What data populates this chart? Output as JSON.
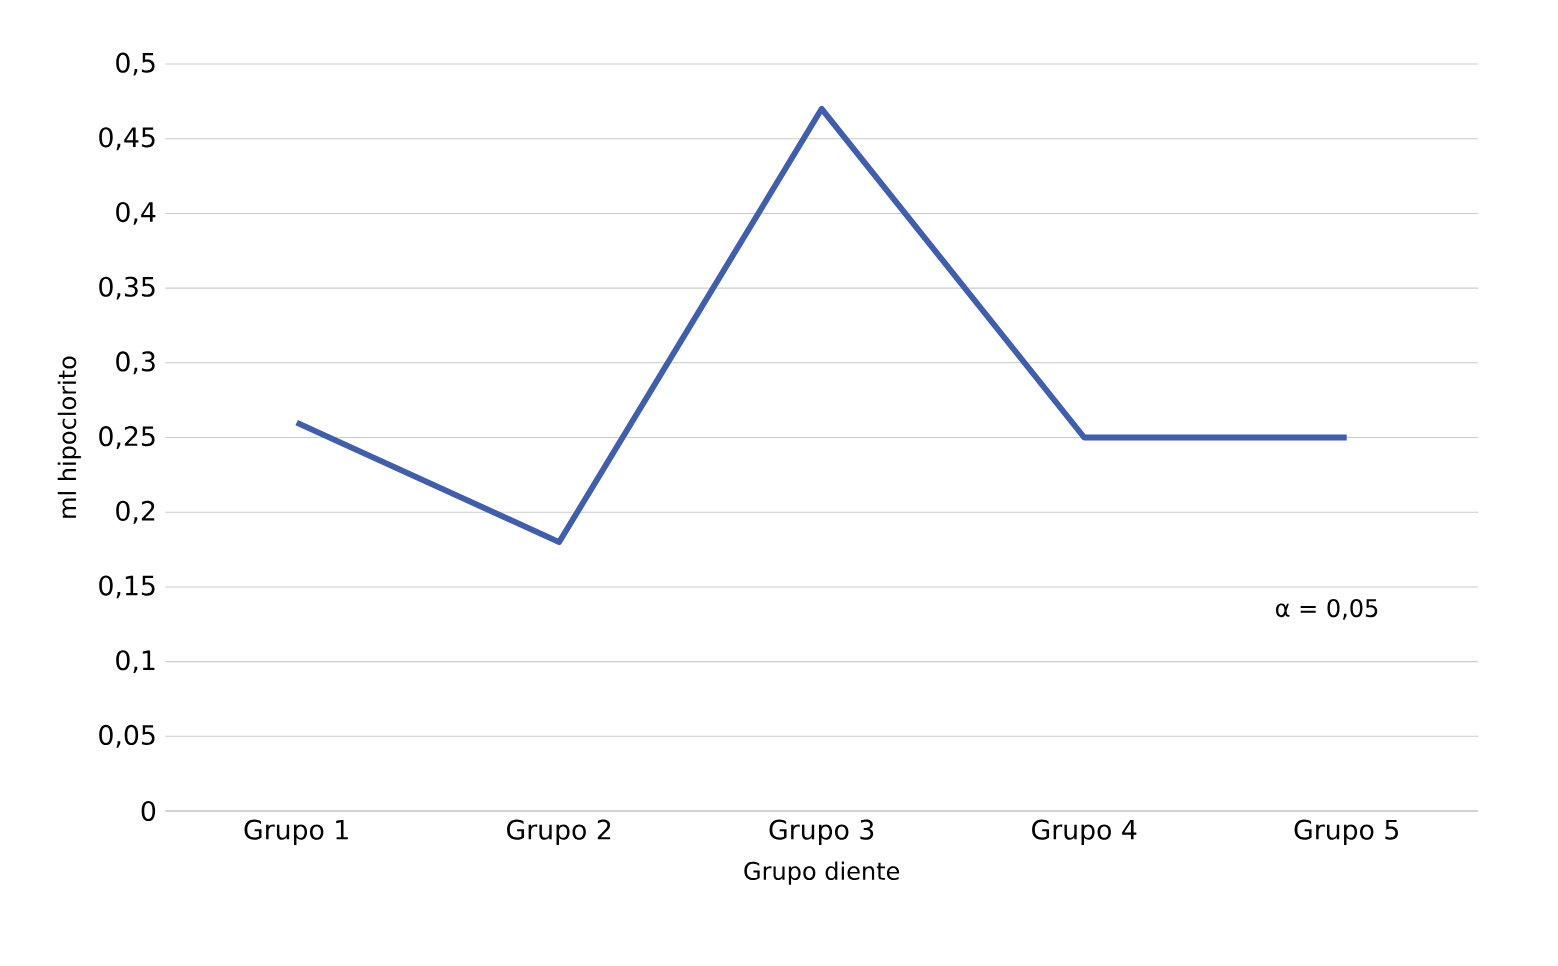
{
  "chart_data": {
    "type": "line",
    "categories": [
      "Grupo 1",
      "Grupo 2",
      "Grupo 3",
      "Grupo 4",
      "Grupo 5"
    ],
    "values": [
      0.26,
      0.18,
      0.47,
      0.25,
      0.25
    ],
    "color": "#3f5fad",
    "xlabel": "Grupo diente",
    "ylabel": "ml hipoclorito",
    "ylim": [
      0,
      0.5
    ],
    "yticks": [
      {
        "value": 0,
        "label": "0"
      },
      {
        "value": 0.05,
        "label": "0,05"
      },
      {
        "value": 0.1,
        "label": "0,1"
      },
      {
        "value": 0.15,
        "label": "0,15"
      },
      {
        "value": 0.2,
        "label": "0,2"
      },
      {
        "value": 0.25,
        "label": "0,25"
      },
      {
        "value": 0.3,
        "label": "0,3"
      },
      {
        "value": 0.35,
        "label": "0,35"
      },
      {
        "value": 0.4,
        "label": "0,4"
      },
      {
        "value": 0.45,
        "label": "0,45"
      },
      {
        "value": 0.5,
        "label": "0,5"
      }
    ],
    "grid": "y",
    "annotations": [
      "α = 0,05"
    ]
  }
}
